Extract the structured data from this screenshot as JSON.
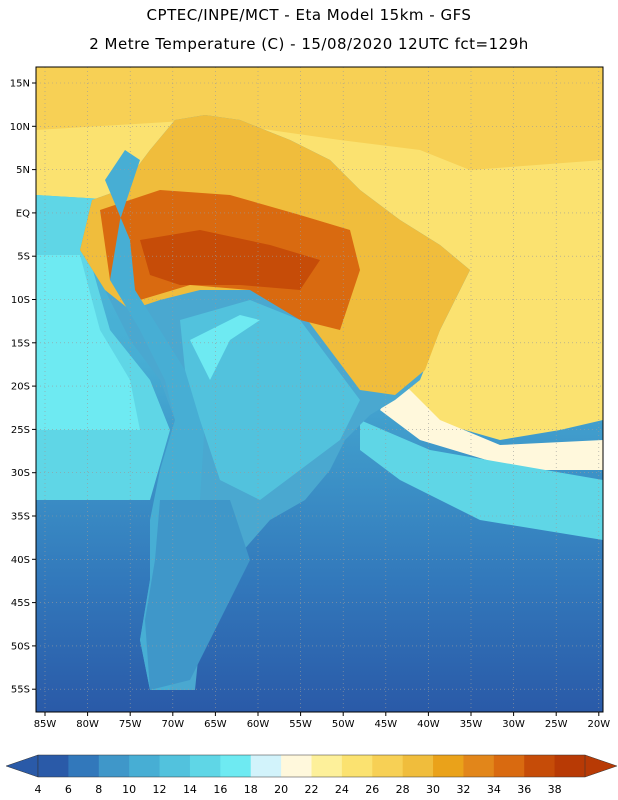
{
  "header": {
    "line1": "CPTEC/INPE/MCT -  Eta Model 15km - GFS",
    "line2": "2 Metre Temperature (C) - 15/08/2020 12UTC fct=129h"
  },
  "map": {
    "region": "South America",
    "lat_labels": [
      "15N",
      "10N",
      "5N",
      "EQ",
      "5S",
      "10S",
      "15S",
      "20S",
      "25S",
      "30S",
      "35S",
      "40S",
      "45S",
      "50S",
      "55S"
    ],
    "lon_labels": [
      "85W",
      "80W",
      "75W",
      "70W",
      "65W",
      "60W",
      "55W",
      "50W",
      "45W",
      "40W",
      "35W",
      "30W",
      "25W",
      "20W"
    ]
  },
  "legend": {
    "ticks": [
      "4",
      "6",
      "8",
      "10",
      "12",
      "14",
      "16",
      "18",
      "20",
      "22",
      "24",
      "26",
      "28",
      "30",
      "32",
      "34",
      "36",
      "38"
    ],
    "colors": [
      "#2a5aa8",
      "#3278bb",
      "#3f97c9",
      "#47aed4",
      "#52c2dd",
      "#5fd6e6",
      "#6eeaf2",
      "#d2f3fb",
      "#fff8dc",
      "#fdf09a",
      "#fbe270",
      "#f7d055",
      "#f0bd3c",
      "#eaa21a",
      "#e2861a",
      "#d96a10",
      "#c64c08",
      "#b83a05"
    ],
    "low_color": "#2a5aa8",
    "high_color": "#b83a05"
  }
}
